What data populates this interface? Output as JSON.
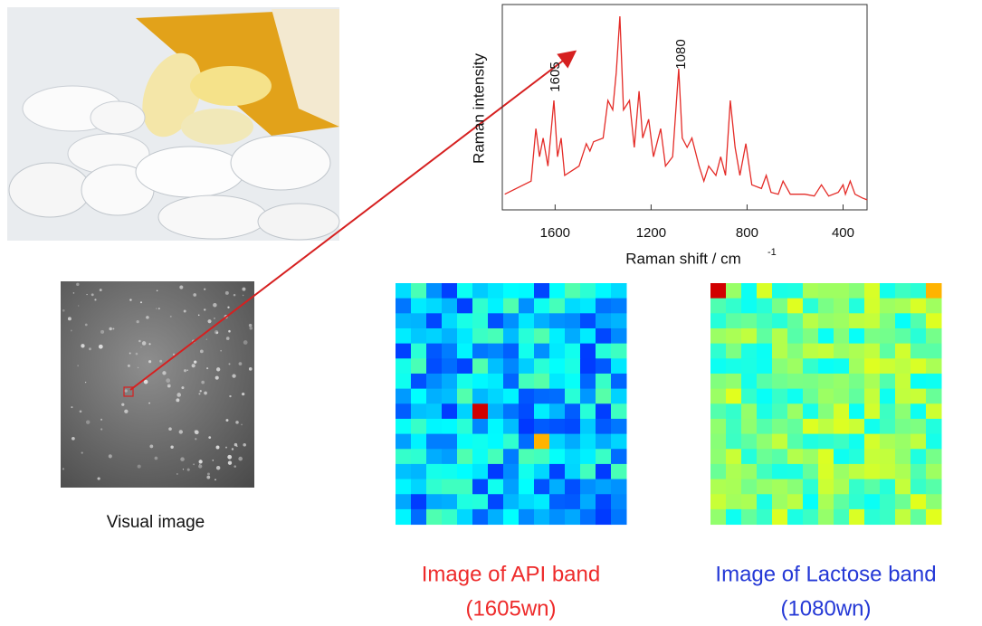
{
  "visual_image": {
    "caption": "Visual image"
  },
  "spectrum": {
    "type": "line",
    "y_label": "Raman intensity",
    "x_label": "Raman shift / cm",
    "x_label_sup": "-1",
    "color": "#e42b27",
    "xlim": [
      1820,
      300
    ],
    "ylim": [
      0,
      1
    ],
    "xticks": [
      1600,
      1200,
      800,
      400
    ],
    "x": [
      1810,
      1700,
      1680,
      1665,
      1650,
      1630,
      1605,
      1590,
      1575,
      1560,
      1500,
      1470,
      1455,
      1440,
      1400,
      1380,
      1360,
      1345,
      1330,
      1315,
      1290,
      1270,
      1250,
      1235,
      1210,
      1190,
      1160,
      1140,
      1110,
      1085,
      1070,
      1050,
      1030,
      1000,
      980,
      960,
      930,
      910,
      890,
      870,
      850,
      830,
      805,
      780,
      740,
      720,
      700,
      670,
      650,
      620,
      560,
      520,
      490,
      460,
      420,
      400,
      390,
      370,
      350,
      320,
      300
    ],
    "values": [
      0.05,
      0.12,
      0.4,
      0.25,
      0.35,
      0.2,
      0.55,
      0.25,
      0.35,
      0.15,
      0.2,
      0.32,
      0.28,
      0.33,
      0.35,
      0.55,
      0.5,
      0.7,
      1.0,
      0.5,
      0.55,
      0.3,
      0.6,
      0.35,
      0.45,
      0.25,
      0.4,
      0.2,
      0.25,
      0.72,
      0.35,
      0.3,
      0.35,
      0.2,
      0.12,
      0.2,
      0.15,
      0.25,
      0.15,
      0.55,
      0.3,
      0.15,
      0.32,
      0.1,
      0.08,
      0.15,
      0.06,
      0.05,
      0.12,
      0.05,
      0.05,
      0.04,
      0.1,
      0.04,
      0.06,
      0.1,
      0.05,
      0.12,
      0.05,
      0.03,
      0.02
    ],
    "annotations": [
      {
        "x": 1605,
        "label": "1605"
      },
      {
        "x": 1080,
        "label": "1080"
      }
    ]
  },
  "maps": [
    {
      "title": "Image  of API band",
      "subtitle": "(1605wn)",
      "color": "#ee2b2b"
    },
    {
      "title": "Image of  Lactose band",
      "subtitle": "(1080wn)",
      "color": "#2438d6"
    }
  ]
}
